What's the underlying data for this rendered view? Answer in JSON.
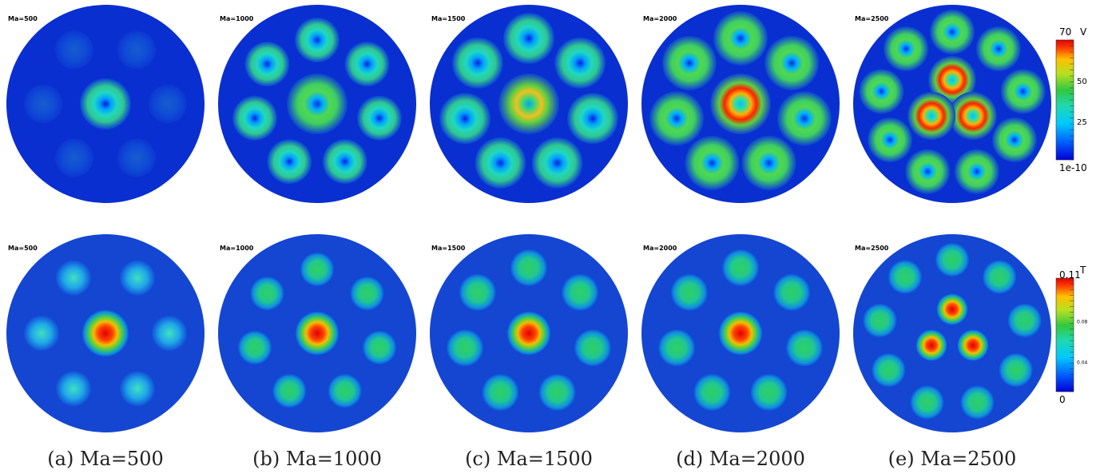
{
  "figure": {
    "panels": [
      {
        "caption": "(a) Ma=500",
        "top_title": "Ma=500",
        "bottom_title": "Ma=500"
      },
      {
        "caption": "(b) Ma=1000",
        "top_title": "Ma=1000",
        "bottom_title": "Ma=1000"
      },
      {
        "caption": "(c) Ma=1500",
        "top_title": "Ma=1500",
        "bottom_title": "Ma=1500"
      },
      {
        "caption": "(d) Ma=2000",
        "top_title": "Ma=2000",
        "bottom_title": "Ma=2000"
      },
      {
        "caption": "(e) Ma=2500",
        "top_title": "Ma=2500",
        "bottom_title": "Ma=2500"
      }
    ],
    "colorbar_velocity": {
      "title": "V",
      "ticks": [
        "70",
        "50",
        "25",
        "1e-10"
      ]
    },
    "colorbar_temperature": {
      "title": "T",
      "ticks": [
        "0.11",
        "0.08",
        "0.04",
        "0"
      ]
    },
    "colormap": [
      "#0000d8",
      "#0060ff",
      "#00c8ff",
      "#20d8b0",
      "#30c840",
      "#b8e020",
      "#ffc000",
      "#ff4000",
      "#e00000"
    ]
  }
}
